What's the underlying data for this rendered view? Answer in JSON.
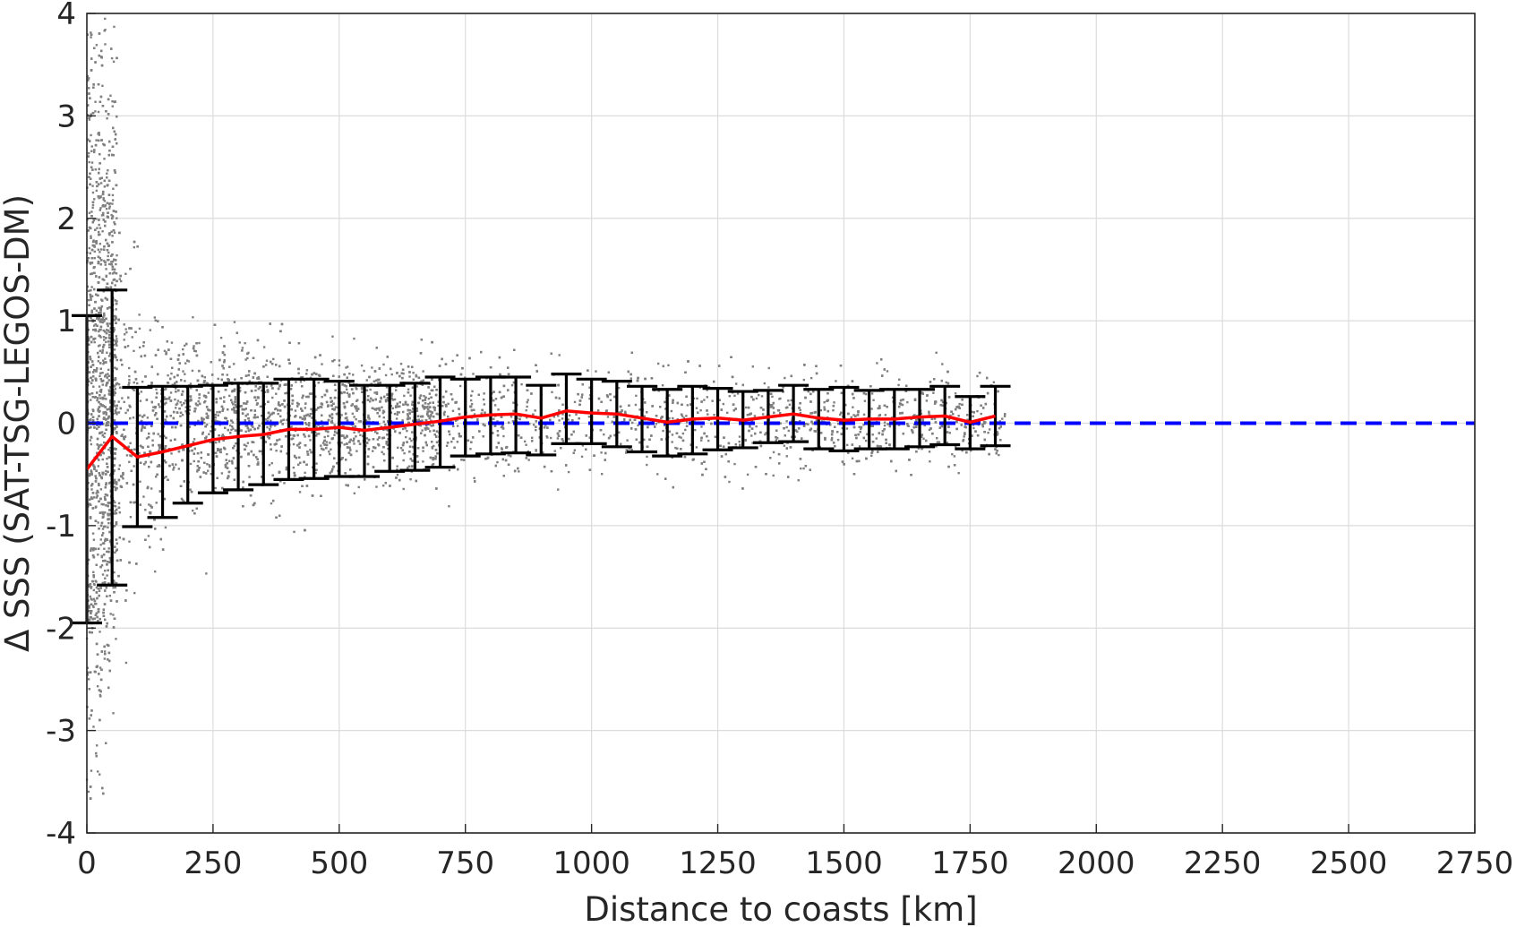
{
  "chart_data": {
    "type": "scatter",
    "title": "",
    "xlabel": "Distance to coasts [km]",
    "ylabel": "Δ SSS (SAT-TSG-LEGOS-DM)",
    "xlim": [
      0,
      2750
    ],
    "ylim": [
      -4,
      4
    ],
    "grid": true,
    "x_ticks": [
      "0",
      "250",
      "500",
      "750",
      "1000",
      "1250",
      "1500",
      "1750",
      "2000",
      "2250",
      "2500",
      "2750"
    ],
    "y_ticks": [
      "-4",
      "-3",
      "-2",
      "-1",
      "0",
      "1",
      "2",
      "3",
      "4"
    ],
    "colors": {
      "scatter": "#808080",
      "mean_line": "#ff0000",
      "error_bars": "#000000",
      "zero_line": "#0000ff"
    },
    "scatter_description": "Dense grey scatter of individual match-up differences for distances 0 to about 1800 km; spread is largest near the coast (within about 50 km) and narrows with distance.",
    "reference_line": {
      "y": 0,
      "style": "dashed"
    },
    "series": [
      {
        "x": [
          0,
          50,
          100,
          150,
          200,
          250,
          300,
          350,
          400,
          450,
          500,
          550,
          600,
          650,
          700,
          750,
          800,
          850,
          900,
          950,
          1000,
          1050,
          1100,
          1150,
          1200,
          1250,
          1300,
          1350,
          1400,
          1450,
          1500,
          1550,
          1600,
          1650,
          1700,
          1750,
          1800
        ],
        "mean": [
          -0.45,
          -0.13,
          -0.33,
          -0.28,
          -0.22,
          -0.16,
          -0.13,
          -0.11,
          -0.06,
          -0.06,
          -0.04,
          -0.07,
          -0.04,
          -0.01,
          0.02,
          0.06,
          0.08,
          0.09,
          0.05,
          0.12,
          0.1,
          0.09,
          0.05,
          0.01,
          0.04,
          0.05,
          0.03,
          0.06,
          0.09,
          0.05,
          0.03,
          0.04,
          0.04,
          0.06,
          0.07,
          0.01,
          0.07
        ],
        "upper": [
          1.05,
          1.3,
          0.35,
          0.36,
          0.36,
          0.37,
          0.39,
          0.39,
          0.43,
          0.43,
          0.41,
          0.37,
          0.37,
          0.39,
          0.45,
          0.43,
          0.45,
          0.45,
          0.37,
          0.48,
          0.43,
          0.41,
          0.36,
          0.33,
          0.36,
          0.34,
          0.31,
          0.32,
          0.37,
          0.33,
          0.35,
          0.32,
          0.33,
          0.33,
          0.36,
          0.26,
          0.36
        ],
        "lower": [
          -1.95,
          -1.58,
          -1.01,
          -0.92,
          -0.78,
          -0.68,
          -0.65,
          -0.6,
          -0.55,
          -0.54,
          -0.52,
          -0.52,
          -0.47,
          -0.46,
          -0.43,
          -0.32,
          -0.3,
          -0.29,
          -0.31,
          -0.2,
          -0.2,
          -0.23,
          -0.28,
          -0.32,
          -0.3,
          -0.26,
          -0.24,
          -0.19,
          -0.18,
          -0.25,
          -0.27,
          -0.25,
          -0.25,
          -0.23,
          -0.21,
          -0.25,
          -0.22
        ]
      }
    ]
  }
}
